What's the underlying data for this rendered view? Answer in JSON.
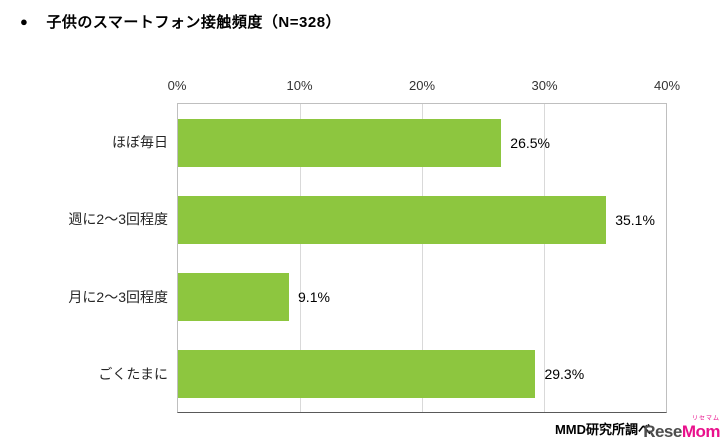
{
  "header": {
    "bullet": "●",
    "title": "子供のスマートフォン接触頻度（N=328）"
  },
  "footer": {
    "source": "MMD研究所調べ",
    "logo": {
      "rese": "Rese",
      "mom": "Mom",
      "kana": "リセマム"
    }
  },
  "colors": {
    "bar": "#8dc63f",
    "grid": "#d9d9d9",
    "plot_border": "#bfbfbf",
    "axis_line": "#595959",
    "logo_gray": "#4d4d4d",
    "logo_pink": "#e9118c"
  },
  "chart_data": {
    "type": "bar",
    "orientation": "horizontal",
    "title": "子供のスマートフォン接触頻度（N=328）",
    "categories": [
      "ほぼ毎日",
      "週に2～3回程度",
      "月に2～3回程度",
      "ごくたまに"
    ],
    "values": [
      26.5,
      35.1,
      9.1,
      29.3
    ],
    "value_labels": [
      "26.5%",
      "35.1%",
      "9.1%",
      "29.3%"
    ],
    "x_tick_labels": [
      "0%",
      "10%",
      "20%",
      "30%",
      "40%"
    ],
    "x_tick_values": [
      0,
      10,
      20,
      30,
      40
    ],
    "xlim": [
      0,
      40
    ],
    "grid": true,
    "legend": false
  }
}
